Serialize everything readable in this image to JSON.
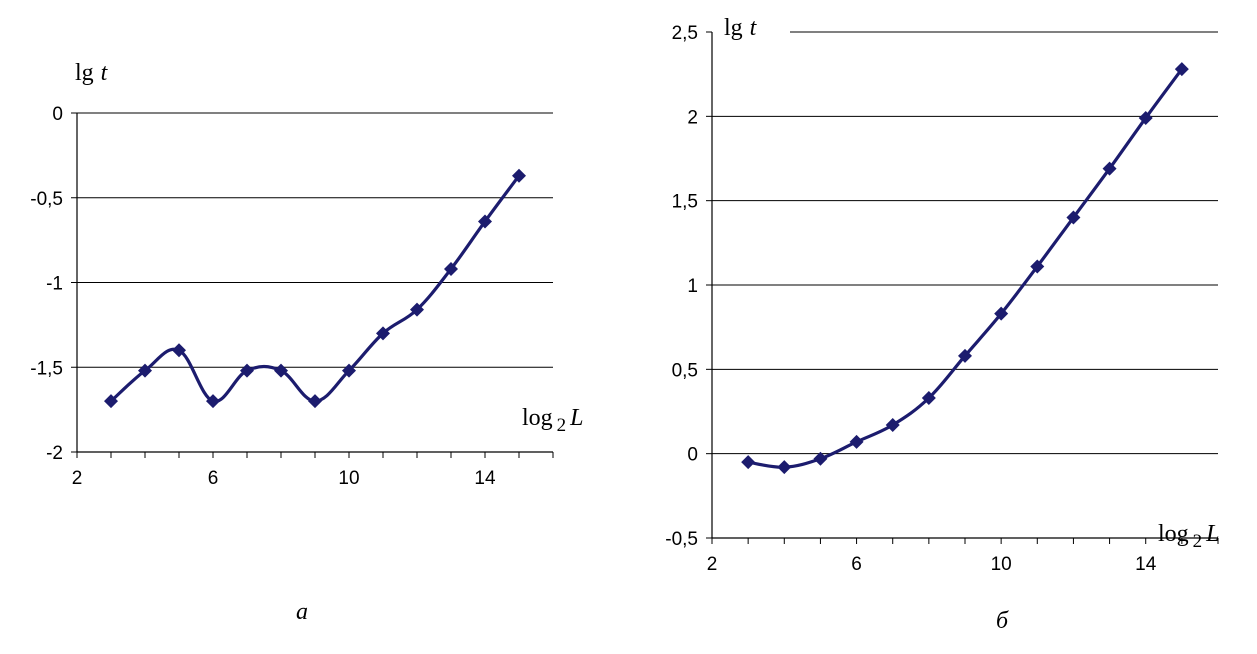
{
  "chart_data": [
    {
      "type": "line",
      "caption": "а",
      "ylabel_main": "lg",
      "ylabel_var": "t",
      "xlabel_main": "log",
      "xlabel_sub": "2",
      "xlabel_var": "L",
      "xlim": [
        2,
        16
      ],
      "ylim": [
        -2,
        0
      ],
      "xticks": [
        2,
        6,
        10,
        14
      ],
      "yticks": [
        0,
        -0.5,
        -1,
        -1.5,
        -2
      ],
      "ytick_labels": [
        "0",
        "-0,5",
        "-1",
        "-1,5",
        "-2"
      ],
      "grid": "horizontal",
      "series": [
        {
          "color": "#1c1c6e",
          "marker": "diamond",
          "x": [
            3,
            4,
            5,
            6,
            7,
            8,
            9,
            10,
            11,
            12,
            13,
            14,
            15
          ],
          "y": [
            -1.7,
            -1.52,
            -1.4,
            -1.7,
            -1.52,
            -1.52,
            -1.7,
            -1.52,
            -1.3,
            -1.16,
            -0.92,
            -0.64,
            -0.37
          ]
        }
      ]
    },
    {
      "type": "line",
      "caption": "б",
      "ylabel_main": "lg",
      "ylabel_var": "t",
      "xlabel_main": "log",
      "xlabel_sub": "2",
      "xlabel_var": "L",
      "xlim": [
        2,
        16
      ],
      "ylim": [
        -0.5,
        2.5
      ],
      "xticks": [
        2,
        6,
        10,
        14
      ],
      "yticks": [
        2.5,
        2,
        1.5,
        1,
        0.5,
        0,
        -0.5
      ],
      "ytick_labels": [
        "2,5",
        "2",
        "1,5",
        "1",
        "0,5",
        "0",
        "-0,5"
      ],
      "grid": "horizontal",
      "series": [
        {
          "color": "#1c1c6e",
          "marker": "diamond",
          "x": [
            3,
            4,
            5,
            6,
            7,
            8,
            9,
            10,
            11,
            12,
            13,
            14,
            15
          ],
          "y": [
            -0.05,
            -0.08,
            -0.03,
            0.07,
            0.17,
            0.33,
            0.58,
            0.83,
            1.11,
            1.4,
            1.69,
            1.99,
            2.28
          ]
        }
      ]
    }
  ]
}
